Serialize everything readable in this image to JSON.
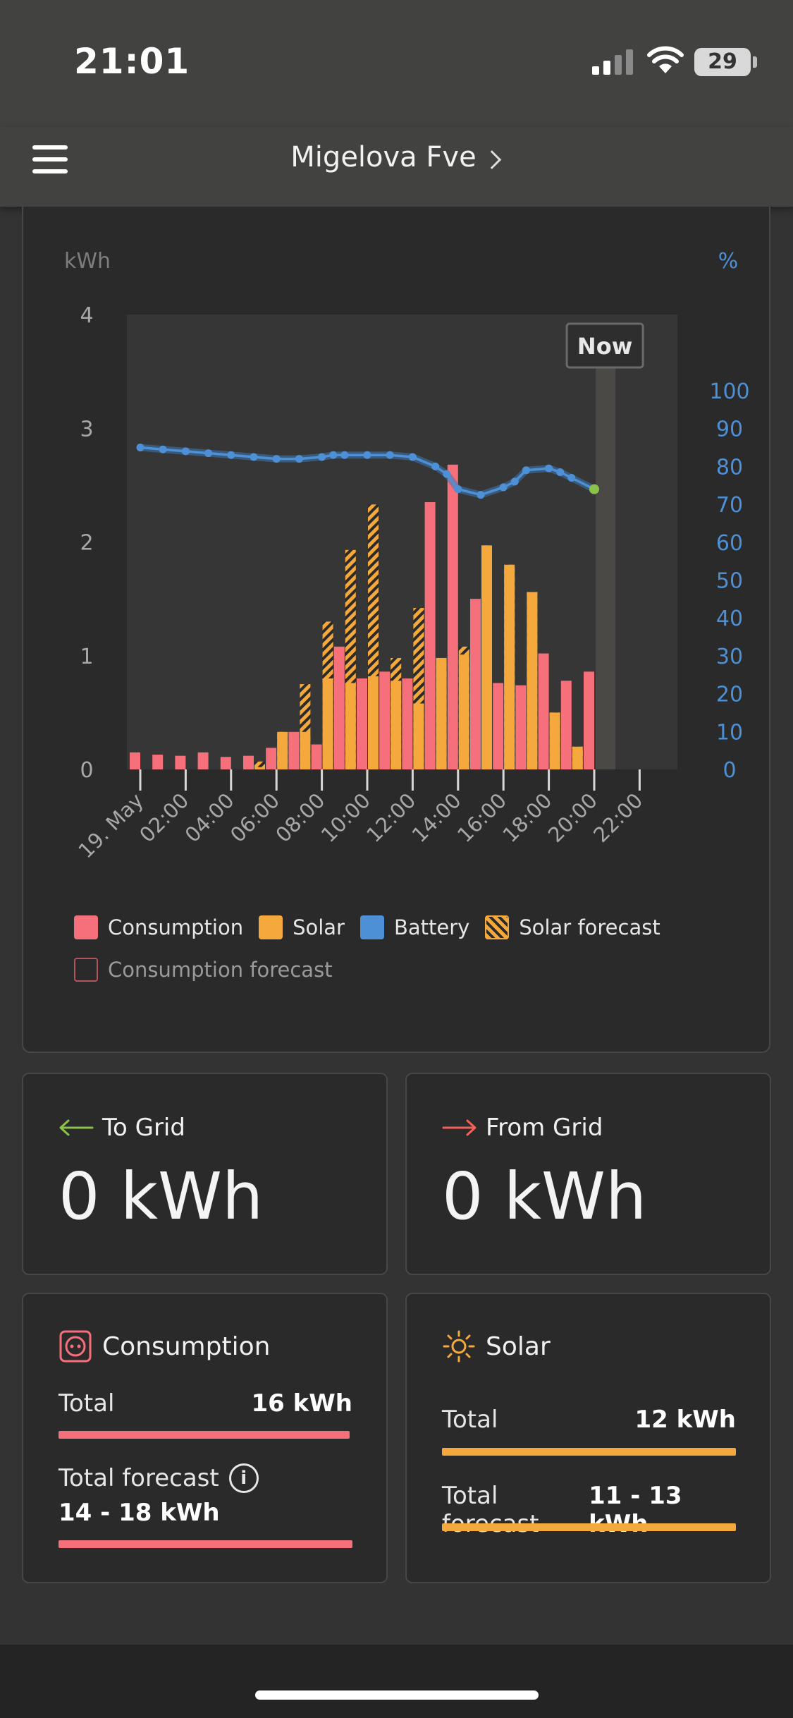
{
  "status_bar": {
    "time": "21:01",
    "battery_level": "29"
  },
  "header": {
    "title": "Migelova Fve"
  },
  "colors": {
    "consumption": "#f5707a",
    "solar": "#f5a93c",
    "battery": "#4d90d6",
    "to_grid_arrow": "#8bc34a",
    "from_grid_arrow": "#f5605a"
  },
  "chart_data": {
    "type": "bar",
    "y_left_label": "kWh",
    "y_right_label": "%",
    "y_left_ticks": [
      "0",
      "1",
      "2",
      "3",
      "4"
    ],
    "y_right_ticks": [
      "0",
      "10",
      "20",
      "30",
      "40",
      "50",
      "60",
      "70",
      "80",
      "90",
      "100"
    ],
    "ylim": [
      0,
      4
    ],
    "y2lim": [
      0,
      100
    ],
    "now_label": "Now",
    "x_tick_labels": [
      "19. May",
      "02:00",
      "04:00",
      "06:00",
      "08:00",
      "10:00",
      "12:00",
      "14:00",
      "16:00",
      "18:00",
      "20:00",
      "22:00"
    ],
    "hours": [
      0,
      1,
      2,
      3,
      4,
      5,
      6,
      7,
      8,
      9,
      10,
      11,
      12,
      13,
      14,
      15,
      16,
      17,
      18,
      19,
      20
    ],
    "series": [
      {
        "name": "Consumption",
        "values": [
          0.15,
          0.13,
          0.12,
          0.15,
          0.11,
          0.12,
          0.19,
          0.33,
          0.22,
          1.08,
          0.8,
          0.86,
          0.8,
          2.35,
          2.68,
          1.5,
          0.76,
          0.74,
          1.02,
          0.78,
          0.86
        ]
      },
      {
        "name": "Solar",
        "values": [
          0,
          0,
          0,
          0,
          0,
          0.02,
          0.33,
          0.33,
          0.8,
          0.76,
          0.82,
          0.78,
          0.58,
          0.98,
          1.01,
          1.97,
          1.8,
          1.56,
          0.5,
          0.2,
          0
        ]
      },
      {
        "name": "Solar forecast",
        "values": [
          0,
          0,
          0,
          0,
          0,
          0.07,
          0.33,
          0.75,
          1.3,
          1.93,
          2.33,
          0.98,
          1.42,
          0.98,
          1.08,
          1.97,
          1.8,
          1.56,
          0.5,
          0.2,
          0
        ]
      },
      {
        "name": "Battery",
        "x": [
          0,
          1,
          2,
          3,
          4,
          5,
          6,
          7,
          8,
          8.5,
          9,
          10,
          11,
          12,
          13,
          13.5,
          14,
          15,
          16,
          16.5,
          17,
          18,
          18.5,
          19,
          20
        ],
        "values": [
          85,
          84.5,
          84,
          83.5,
          83,
          82.5,
          82,
          82,
          82.5,
          83,
          83,
          83,
          83,
          82.5,
          80,
          78,
          74,
          72.5,
          74.5,
          76,
          79,
          79.5,
          78.5,
          77,
          74
        ]
      }
    ],
    "now_hour": 20.5
  },
  "legend": {
    "consumption": "Consumption",
    "solar": "Solar",
    "battery": "Battery",
    "solar_forecast": "Solar forecast",
    "consumption_forecast": "Consumption forecast"
  },
  "to_grid": {
    "label": "To Grid",
    "value": "0 kWh"
  },
  "from_grid": {
    "label": "From Grid",
    "value": "0 kWh"
  },
  "consumption": {
    "title": "Consumption",
    "total_label": "Total",
    "total_value": "16 kWh",
    "forecast_label": "Total forecast",
    "forecast_value": "14 - 18 kWh",
    "total_progress": 0.99,
    "forecast_progress": 1.0
  },
  "solar": {
    "title": "Solar",
    "total_label": "Total",
    "total_value": "12 kWh",
    "forecast_label": "Total forecast",
    "forecast_value": "11 - 13 kWh",
    "total_progress": 1.0,
    "forecast_progress": 1.0
  }
}
